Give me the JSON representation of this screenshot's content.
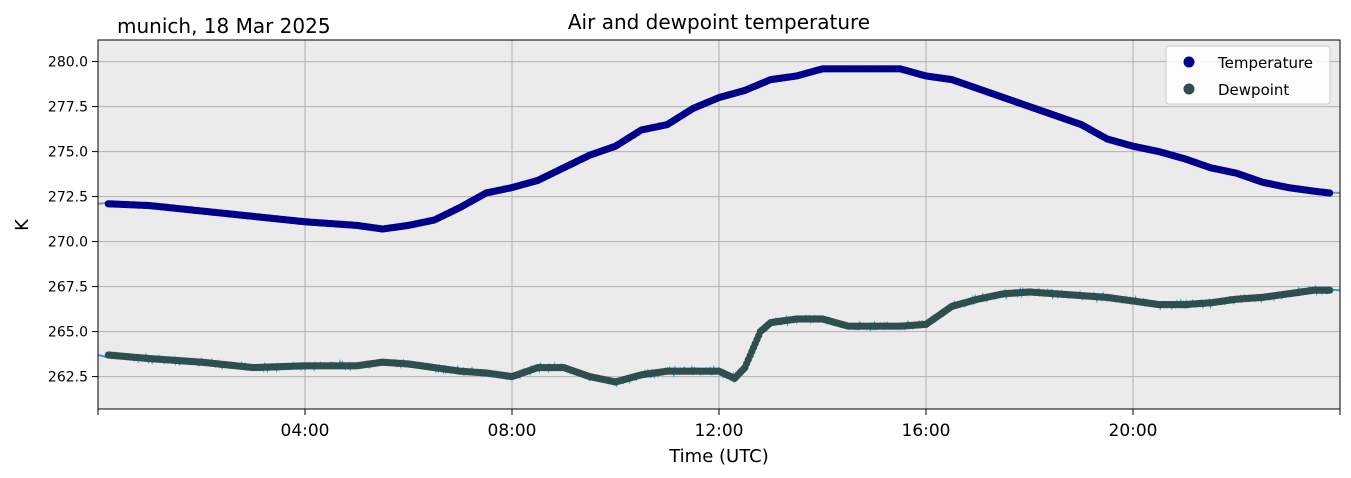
{
  "chart_data": {
    "type": "line",
    "title": "Air and dewpoint temperature",
    "subtitle": "munich, 18 Mar 2025",
    "xlabel": "Time (UTC)",
    "ylabel": "K",
    "xlim": [
      "00:00",
      "24:00"
    ],
    "ylim": [
      260.7,
      281.2
    ],
    "x_ticks": [
      {
        "hour": 0,
        "label": ""
      },
      {
        "hour": 4,
        "label": "04:00"
      },
      {
        "hour": 8,
        "label": "08:00"
      },
      {
        "hour": 12,
        "label": "12:00"
      },
      {
        "hour": 16,
        "label": "16:00"
      },
      {
        "hour": 20,
        "label": "20:00"
      },
      {
        "hour": 24,
        "label": ""
      }
    ],
    "y_ticks": [
      262.5,
      265.0,
      267.5,
      270.0,
      272.5,
      275.0,
      277.5,
      280.0
    ],
    "grid": true,
    "legend_position": "top-right",
    "background": "#ebebeb",
    "series": [
      {
        "name": "Temperature",
        "color": "#00008b",
        "raw_color": "#6fa2a8",
        "points": [
          [
            0.2,
            272.1
          ],
          [
            1.0,
            272.0
          ],
          [
            2.0,
            271.7
          ],
          [
            3.0,
            271.4
          ],
          [
            4.0,
            271.1
          ],
          [
            5.0,
            270.9
          ],
          [
            5.5,
            270.7
          ],
          [
            6.0,
            270.9
          ],
          [
            6.5,
            271.2
          ],
          [
            7.0,
            271.9
          ],
          [
            7.5,
            272.7
          ],
          [
            8.0,
            273.0
          ],
          [
            8.5,
            273.4
          ],
          [
            9.0,
            274.1
          ],
          [
            9.5,
            274.8
          ],
          [
            10.0,
            275.3
          ],
          [
            10.5,
            276.2
          ],
          [
            11.0,
            276.5
          ],
          [
            11.5,
            277.4
          ],
          [
            12.0,
            278.0
          ],
          [
            12.5,
            278.4
          ],
          [
            13.0,
            279.0
          ],
          [
            13.5,
            279.2
          ],
          [
            14.0,
            279.6
          ],
          [
            14.5,
            279.6
          ],
          [
            15.0,
            279.6
          ],
          [
            15.5,
            279.6
          ],
          [
            16.0,
            279.2
          ],
          [
            16.5,
            279.0
          ],
          [
            17.0,
            278.5
          ],
          [
            17.5,
            278.0
          ],
          [
            18.0,
            277.5
          ],
          [
            18.5,
            277.0
          ],
          [
            19.0,
            276.5
          ],
          [
            19.5,
            275.7
          ],
          [
            20.0,
            275.3
          ],
          [
            20.5,
            275.0
          ],
          [
            21.0,
            274.6
          ],
          [
            21.5,
            274.1
          ],
          [
            22.0,
            273.8
          ],
          [
            22.5,
            273.3
          ],
          [
            23.0,
            273.0
          ],
          [
            23.5,
            272.8
          ],
          [
            23.8,
            272.7
          ]
        ]
      },
      {
        "name": "Dewpoint",
        "color": "#2f4f4f",
        "raw_color": "#2aa1e8",
        "points": [
          [
            0.2,
            263.7
          ],
          [
            1.0,
            263.5
          ],
          [
            2.0,
            263.3
          ],
          [
            3.0,
            263.0
          ],
          [
            4.0,
            263.1
          ],
          [
            5.0,
            263.1
          ],
          [
            5.5,
            263.3
          ],
          [
            6.0,
            263.2
          ],
          [
            6.5,
            263.0
          ],
          [
            7.0,
            262.8
          ],
          [
            7.5,
            262.7
          ],
          [
            8.0,
            262.5
          ],
          [
            8.5,
            263.0
          ],
          [
            9.0,
            263.0
          ],
          [
            9.5,
            262.5
          ],
          [
            10.0,
            262.2
          ],
          [
            10.5,
            262.6
          ],
          [
            11.0,
            262.8
          ],
          [
            11.5,
            262.8
          ],
          [
            12.0,
            262.8
          ],
          [
            12.3,
            262.4
          ],
          [
            12.5,
            263.0
          ],
          [
            12.8,
            265.0
          ],
          [
            13.0,
            265.5
          ],
          [
            13.5,
            265.7
          ],
          [
            14.0,
            265.7
          ],
          [
            14.5,
            265.3
          ],
          [
            15.0,
            265.3
          ],
          [
            15.5,
            265.3
          ],
          [
            16.0,
            265.4
          ],
          [
            16.5,
            266.4
          ],
          [
            17.0,
            266.8
          ],
          [
            17.5,
            267.1
          ],
          [
            18.0,
            267.2
          ],
          [
            18.5,
            267.1
          ],
          [
            19.0,
            267.0
          ],
          [
            19.5,
            266.9
          ],
          [
            20.0,
            266.7
          ],
          [
            20.5,
            266.5
          ],
          [
            21.0,
            266.5
          ],
          [
            21.5,
            266.6
          ],
          [
            22.0,
            266.8
          ],
          [
            22.5,
            266.9
          ],
          [
            23.0,
            267.1
          ],
          [
            23.5,
            267.3
          ],
          [
            23.8,
            267.3
          ]
        ]
      }
    ]
  }
}
